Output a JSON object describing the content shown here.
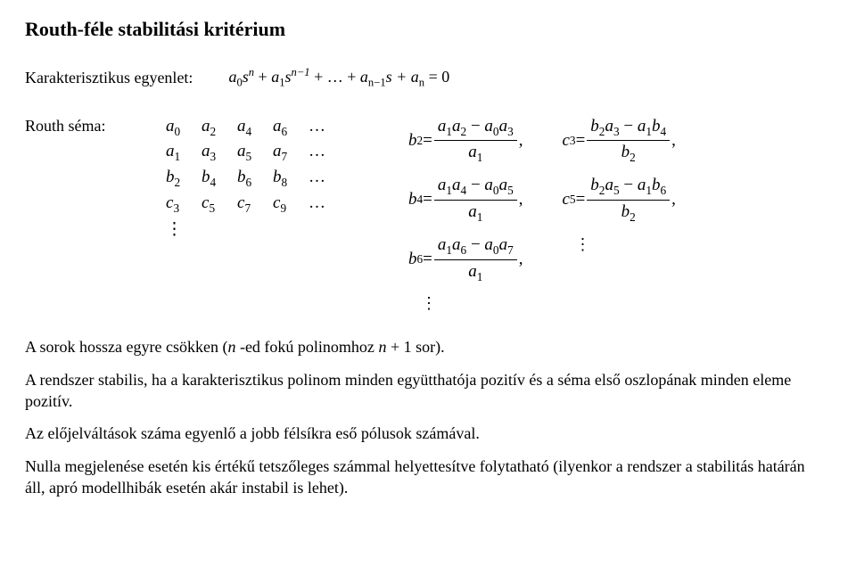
{
  "title": "Routh-féle stabilitási kritérium",
  "characteristic": {
    "label": "Karakterisztikus egyenlet:",
    "eq_terms": [
      "a",
      "0",
      "s",
      "n",
      " + ",
      "a",
      "1",
      "s",
      "n−1",
      " + … + ",
      "a",
      "n−1",
      "s + ",
      "a",
      "n",
      " = 0"
    ]
  },
  "scheme": {
    "label": "Routh séma:",
    "rows": [
      [
        "a",
        "0",
        "a",
        "2",
        "a",
        "4",
        "a",
        "6",
        "…"
      ],
      [
        "a",
        "1",
        "a",
        "3",
        "a",
        "5",
        "a",
        "7",
        "…"
      ],
      [
        "b",
        "2",
        "b",
        "4",
        "b",
        "6",
        "b",
        "8",
        "…"
      ],
      [
        "c",
        "3",
        "c",
        "5",
        "c",
        "7",
        "c",
        "9",
        "…"
      ]
    ],
    "vdots": "⋮"
  },
  "formulas_b": [
    {
      "lhs_var": "b",
      "lhs_sub": "2",
      "num_parts": [
        "a",
        "1",
        "a",
        "2",
        " − ",
        "a",
        "0",
        "a",
        "3"
      ],
      "den_var": "a",
      "den_sub": "1"
    },
    {
      "lhs_var": "b",
      "lhs_sub": "4",
      "num_parts": [
        "a",
        "1",
        "a",
        "4",
        " − ",
        "a",
        "0",
        "a",
        "5"
      ],
      "den_var": "a",
      "den_sub": "1"
    },
    {
      "lhs_var": "b",
      "lhs_sub": "6",
      "num_parts": [
        "a",
        "1",
        "a",
        "6",
        " − ",
        "a",
        "0",
        "a",
        "7"
      ],
      "den_var": "a",
      "den_sub": "1"
    }
  ],
  "formulas_c": [
    {
      "lhs_var": "c",
      "lhs_sub": "3",
      "num_parts": [
        "b",
        "2",
        "a",
        "3",
        " − ",
        "a",
        "1",
        "b",
        "4"
      ],
      "den_var": "b",
      "den_sub": "2"
    },
    {
      "lhs_var": "c",
      "lhs_sub": "5",
      "num_parts": [
        "b",
        "2",
        "a",
        "5",
        " − ",
        "a",
        "1",
        "b",
        "6"
      ],
      "den_var": "b",
      "den_sub": "2"
    }
  ],
  "paragraphs": {
    "p1_a": "A sorok hossza egyre csökken (",
    "p1_n1": "n",
    "p1_b": " -ed fokú polinomhoz ",
    "p1_n2": "n",
    "p1_c": " + 1 sor).",
    "p2": "A rendszer stabilis, ha a karakterisztikus polinom minden együtthatója pozitív és a séma első oszlopának minden eleme pozitív.",
    "p3": "Az előjelváltások száma egyenlő a jobb félsíkra eső pólusok számával.",
    "p4": "Nulla megjelenése esetén kis értékű tetszőleges számmal helyettesítve folytatható (ilyenkor a rendszer a stabilitás határán áll, apró modellhibák esetén akár instabil is lehet)."
  },
  "vdots": "⋮",
  "comma": " ,"
}
